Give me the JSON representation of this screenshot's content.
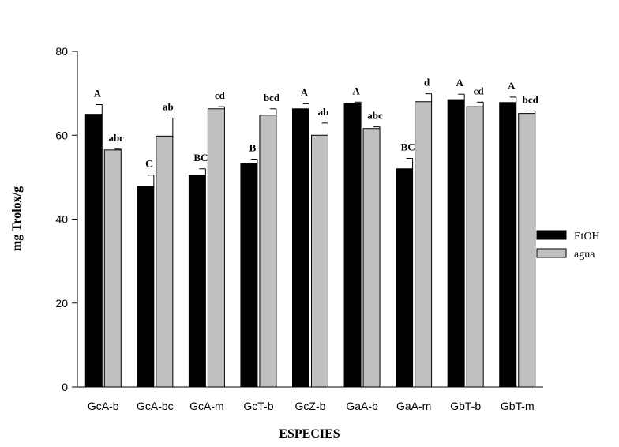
{
  "chart_data": {
    "type": "bar",
    "title": "",
    "xlabel": "ESPECIES",
    "ylabel": "mg Trolox/g",
    "ylim": [
      0,
      80
    ],
    "yticks": [
      "0",
      "20",
      "40",
      "60",
      "80"
    ],
    "grid": false,
    "legend_position": "right",
    "categories": [
      "GcA-b",
      "GcA-bc",
      "GcA-m",
      "GcT-b",
      "GcZ-b",
      "GaA-b",
      "GaA-m",
      "GbT-b",
      "GbT-m"
    ],
    "series": [
      {
        "name": "EtOH",
        "color": "#000000",
        "values": [
          65.0,
          47.8,
          50.5,
          53.3,
          66.3,
          67.5,
          52.0,
          68.5,
          67.8
        ],
        "errors": [
          2.3,
          2.7,
          1.5,
          1.0,
          1.2,
          0.4,
          2.5,
          1.3,
          1.3
        ],
        "letters": [
          "A",
          "C",
          "BC",
          "B",
          "A",
          "A",
          "BC",
          "A",
          "A"
        ]
      },
      {
        "name": "agua",
        "color": "#c0c0c0",
        "values": [
          56.5,
          59.8,
          66.3,
          64.8,
          60.0,
          61.6,
          68.0,
          66.8,
          65.2
        ],
        "errors": [
          0.2,
          4.3,
          0.5,
          1.5,
          2.9,
          0.4,
          1.9,
          1.1,
          0.6
        ],
        "letters": [
          "abc",
          "ab",
          "cd",
          "bcd",
          "ab",
          "abc",
          "d",
          "cd",
          "bcd"
        ]
      }
    ]
  }
}
